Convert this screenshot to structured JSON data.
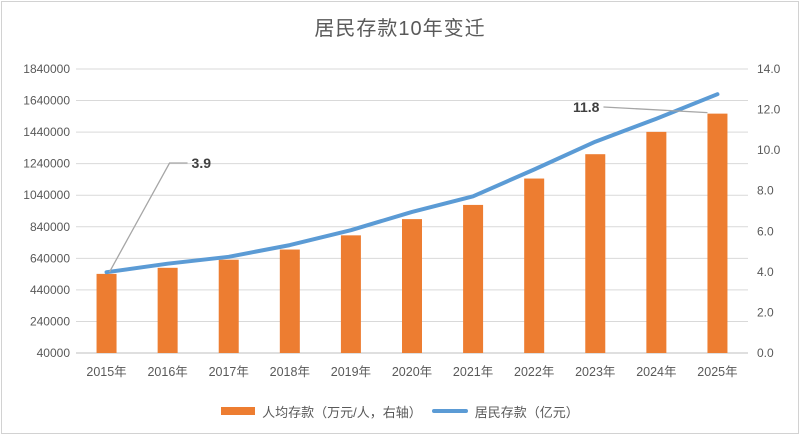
{
  "chart_data": {
    "type": "combo",
    "title": "居民存款10年变迁",
    "categories": [
      "2015年",
      "2016年",
      "2017年",
      "2018年",
      "2019年",
      "2020年",
      "2021年",
      "2022年",
      "2023年",
      "2024年",
      "2025年"
    ],
    "series": [
      {
        "name": "人均存款（万元/人，右轴）",
        "type": "bar",
        "axis": "right",
        "color": "#ED7D31",
        "values": [
          3.9,
          4.2,
          4.6,
          5.1,
          5.8,
          6.6,
          7.3,
          8.6,
          9.8,
          10.9,
          11.8
        ]
      },
      {
        "name": "居民存款（亿元）",
        "type": "line",
        "axis": "left",
        "color": "#5B9BD5",
        "values": [
          552000,
          606000,
          650000,
          724000,
          818000,
          934000,
          1033000,
          1203000,
          1379000,
          1525000,
          1680000
        ]
      }
    ],
    "left_axis": {
      "min": 40000,
      "max": 1840000,
      "step": 200000,
      "ticks": [
        "1840000",
        "1640000",
        "1440000",
        "1240000",
        "1040000",
        "840000",
        "640000",
        "440000",
        "240000",
        "40000"
      ]
    },
    "right_axis": {
      "min": 0,
      "max": 14,
      "step": 2,
      "ticks": [
        "14.0",
        "12.0",
        "10.0",
        "8.0",
        "6.0",
        "4.0",
        "2.0",
        "0.0"
      ]
    },
    "annotations": [
      {
        "text": "3.9",
        "series": 0,
        "index": 0
      },
      {
        "text": "11.8",
        "series": 0,
        "index": 10
      }
    ],
    "legend_position": "bottom",
    "grid": true
  },
  "colors": {
    "bar": "#ED7D31",
    "line": "#5B9BD5",
    "grid": "#D9D9D9",
    "axis": "#BFBFBF",
    "tick_label": "#595959",
    "data_label": "#404040",
    "leader": "#A6A6A6"
  }
}
